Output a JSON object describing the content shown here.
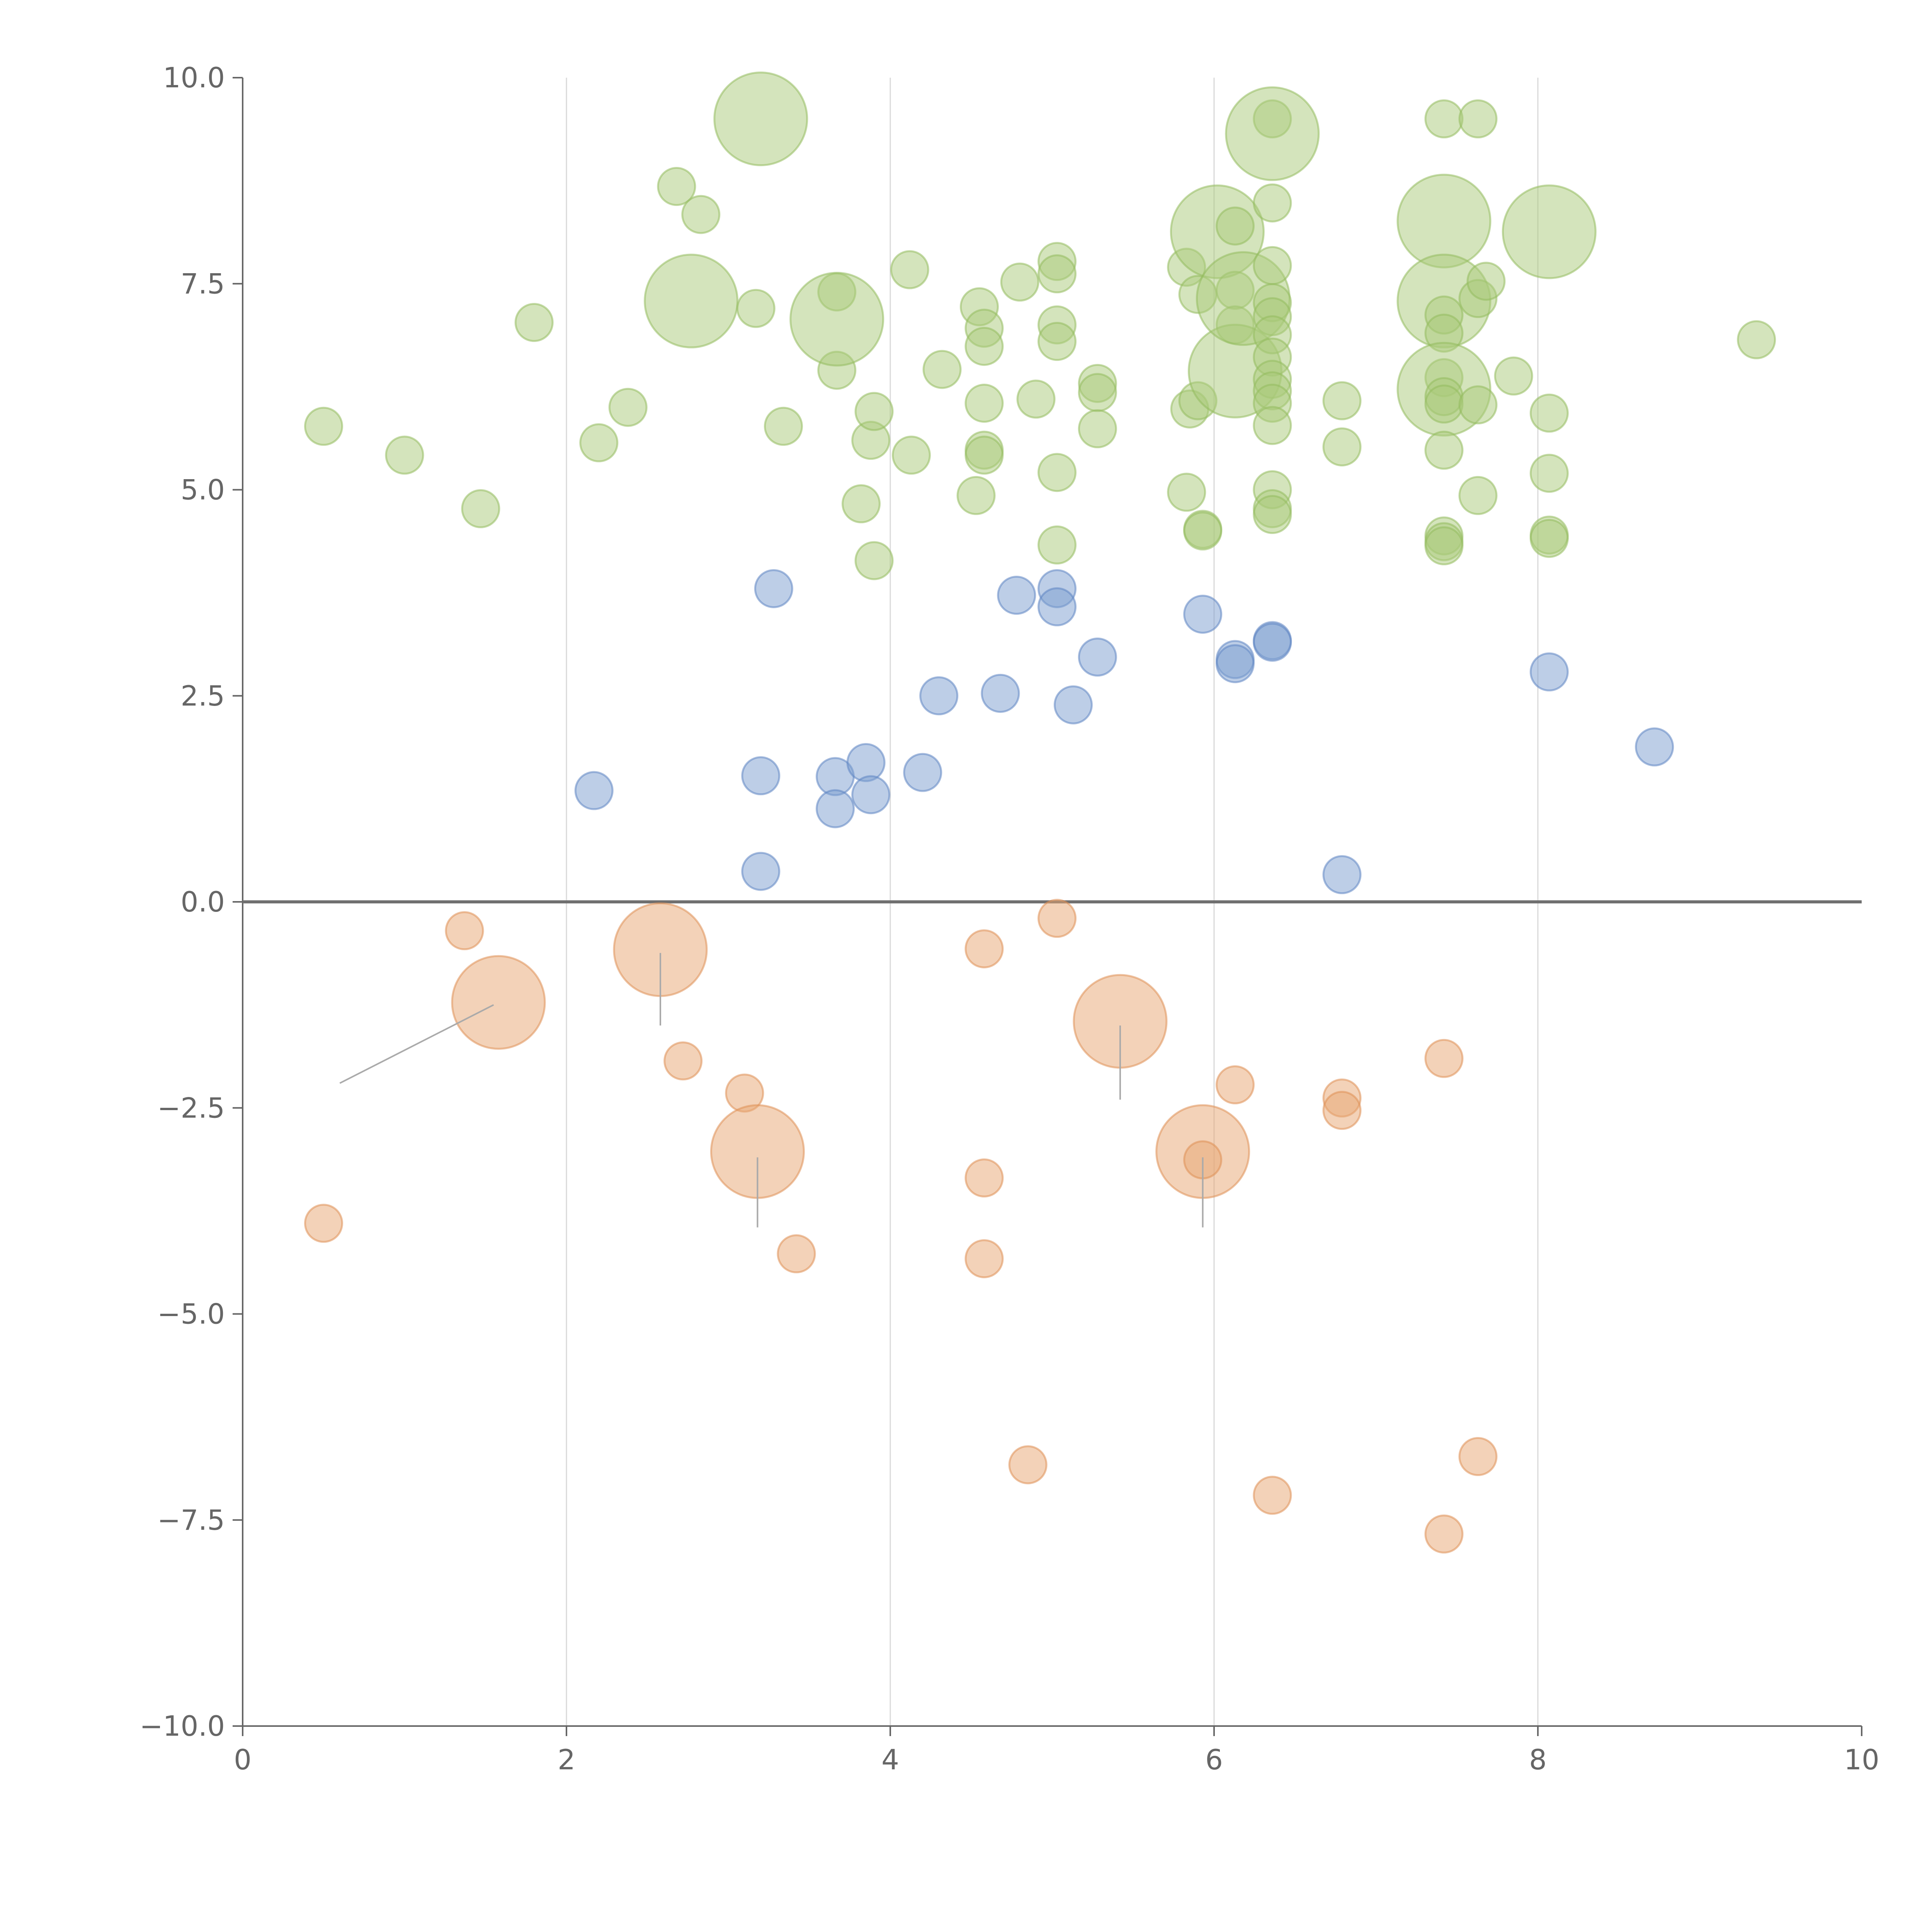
{
  "chart_data": {
    "type": "scatter",
    "title": "",
    "xlabel": "",
    "ylabel": "",
    "xlim": [
      0,
      10
    ],
    "ylim": [
      -10,
      10
    ],
    "x_ticks": [
      "0",
      "2",
      "4",
      "6",
      "8",
      "10"
    ],
    "x_tick_values": [
      0,
      2,
      4,
      6,
      8,
      10
    ],
    "y_ticks": [
      "10.0",
      "7.5",
      "5.0",
      "2.5",
      "0.0",
      "−2.5",
      "−5.0",
      "−7.5",
      "−10.0"
    ],
    "y_tick_values": [
      10,
      7.5,
      5,
      2.5,
      0,
      -2.5,
      -5,
      -7.5,
      -10
    ],
    "vertical_gridlines_at": [
      2,
      4,
      6,
      8
    ],
    "reference_line_y": 0,
    "series": [
      {
        "name": "green",
        "color": "#a9c97a",
        "stroke": "#93bb5f",
        "points": [
          [
            0.5,
            5.77,
            1
          ],
          [
            1.0,
            5.42,
            1
          ],
          [
            1.47,
            4.77,
            1
          ],
          [
            1.8,
            7.03,
            1
          ],
          [
            2.2,
            5.57,
            1
          ],
          [
            2.38,
            6.0,
            1
          ],
          [
            2.68,
            8.68,
            1
          ],
          [
            2.83,
            8.34,
            1
          ],
          [
            2.77,
            7.29,
            2.5
          ],
          [
            3.17,
            7.2,
            1
          ],
          [
            3.2,
            9.5,
            2.5
          ],
          [
            3.34,
            5.77,
            1
          ],
          [
            3.67,
            7.4,
            1
          ],
          [
            3.67,
            6.45,
            1
          ],
          [
            3.67,
            7.07,
            2.5
          ],
          [
            3.82,
            4.83,
            1
          ],
          [
            3.88,
            5.6,
            1
          ],
          [
            3.9,
            5.95,
            1
          ],
          [
            3.9,
            4.14,
            1
          ],
          [
            4.12,
            7.67,
            1
          ],
          [
            4.13,
            5.42,
            1
          ],
          [
            4.32,
            6.46,
            1
          ],
          [
            4.53,
            4.93,
            1
          ],
          [
            4.55,
            7.22,
            1
          ],
          [
            4.58,
            6.96,
            1
          ],
          [
            4.58,
            6.74,
            1
          ],
          [
            4.58,
            6.05,
            1
          ],
          [
            4.58,
            5.48,
            1
          ],
          [
            4.58,
            5.42,
            1
          ],
          [
            4.8,
            7.52,
            1
          ],
          [
            4.9,
            6.1,
            1
          ],
          [
            5.03,
            7.77,
            1
          ],
          [
            5.03,
            7.62,
            1
          ],
          [
            5.03,
            7.0,
            1
          ],
          [
            5.03,
            6.8,
            1
          ],
          [
            5.03,
            5.21,
            1
          ],
          [
            5.03,
            4.33,
            1
          ],
          [
            5.28,
            6.29,
            1
          ],
          [
            5.28,
            6.18,
            1
          ],
          [
            5.28,
            5.74,
            1
          ],
          [
            5.83,
            7.7,
            1
          ],
          [
            5.83,
            4.97,
            1
          ],
          [
            5.85,
            5.98,
            1
          ],
          [
            5.9,
            7.37,
            1
          ],
          [
            5.9,
            6.08,
            1
          ],
          [
            5.93,
            4.52,
            1
          ],
          [
            5.93,
            4.5,
            1
          ],
          [
            6.02,
            8.13,
            2.5
          ],
          [
            6.13,
            8.2,
            1
          ],
          [
            6.13,
            7.42,
            1
          ],
          [
            6.13,
            7.0,
            1
          ],
          [
            6.13,
            6.44,
            2.5
          ],
          [
            6.18,
            7.32,
            2.5
          ],
          [
            6.36,
            9.5,
            1
          ],
          [
            6.36,
            9.32,
            2.5
          ],
          [
            6.36,
            8.48,
            1
          ],
          [
            6.36,
            7.72,
            1
          ],
          [
            6.36,
            7.27,
            1
          ],
          [
            6.36,
            7.1,
            1
          ],
          [
            6.36,
            6.88,
            1
          ],
          [
            6.36,
            6.61,
            1
          ],
          [
            6.36,
            6.34,
            1
          ],
          [
            6.36,
            6.2,
            1
          ],
          [
            6.36,
            6.05,
            1
          ],
          [
            6.36,
            5.78,
            1
          ],
          [
            6.36,
            5.0,
            1
          ],
          [
            6.36,
            4.77,
            1
          ],
          [
            6.36,
            4.7,
            1
          ],
          [
            6.79,
            6.08,
            1
          ],
          [
            6.79,
            5.52,
            1
          ],
          [
            7.42,
            9.5,
            1
          ],
          [
            7.42,
            8.26,
            2.5
          ],
          [
            7.42,
            7.29,
            2.5
          ],
          [
            7.42,
            7.12,
            1
          ],
          [
            7.42,
            6.9,
            1
          ],
          [
            7.42,
            6.36,
            1
          ],
          [
            7.42,
            6.22,
            2.5
          ],
          [
            7.42,
            6.13,
            1
          ],
          [
            7.42,
            6.04,
            1
          ],
          [
            7.42,
            5.48,
            1
          ],
          [
            7.42,
            4.44,
            1
          ],
          [
            7.42,
            4.37,
            1
          ],
          [
            7.42,
            4.32,
            1
          ],
          [
            7.63,
            9.5,
            1
          ],
          [
            7.63,
            7.32,
            1
          ],
          [
            7.63,
            6.03,
            1
          ],
          [
            7.63,
            4.93,
            1
          ],
          [
            7.68,
            7.53,
            1
          ],
          [
            7.85,
            6.38,
            1
          ],
          [
            8.07,
            8.13,
            2.5
          ],
          [
            8.07,
            5.93,
            1
          ],
          [
            8.07,
            5.2,
            1
          ],
          [
            8.07,
            4.45,
            1
          ],
          [
            8.07,
            4.41,
            1
          ],
          [
            9.35,
            6.82,
            1
          ]
        ]
      },
      {
        "name": "blue",
        "color": "#7b9dd0",
        "stroke": "#5e85c2",
        "points": [
          [
            2.17,
            1.35,
            1
          ],
          [
            3.2,
            1.53,
            1
          ],
          [
            3.2,
            0.37,
            1
          ],
          [
            3.28,
            3.8,
            1
          ],
          [
            3.66,
            1.52,
            1
          ],
          [
            3.66,
            1.13,
            1
          ],
          [
            3.85,
            1.69,
            1
          ],
          [
            3.88,
            1.3,
            1
          ],
          [
            4.2,
            1.57,
            1
          ],
          [
            4.3,
            2.5,
            1
          ],
          [
            4.68,
            2.53,
            1
          ],
          [
            4.78,
            3.72,
            1
          ],
          [
            5.03,
            3.8,
            1
          ],
          [
            5.03,
            3.58,
            1
          ],
          [
            5.13,
            2.39,
            1
          ],
          [
            5.28,
            2.97,
            1
          ],
          [
            5.93,
            3.49,
            1
          ],
          [
            6.13,
            2.94,
            1
          ],
          [
            6.13,
            2.89,
            1
          ],
          [
            6.36,
            3.17,
            1
          ],
          [
            6.36,
            3.15,
            1
          ],
          [
            6.79,
            0.33,
            1
          ],
          [
            8.07,
            2.79,
            1
          ],
          [
            8.72,
            1.88,
            1
          ]
        ]
      },
      {
        "name": "orange",
        "color": "#e8a672",
        "stroke": "#df9055",
        "points": [
          [
            0.5,
            -3.9,
            1
          ],
          [
            1.37,
            -0.35,
            1
          ],
          [
            1.58,
            -1.22,
            2.5
          ],
          [
            2.58,
            -0.58,
            2.5
          ],
          [
            2.72,
            -1.93,
            1
          ],
          [
            3.1,
            -2.32,
            1
          ],
          [
            3.18,
            -3.03,
            2.5
          ],
          [
            3.42,
            -4.27,
            1
          ],
          [
            4.58,
            -0.57,
            1
          ],
          [
            4.58,
            -3.35,
            1
          ],
          [
            4.58,
            -4.33,
            1
          ],
          [
            4.85,
            -6.83,
            1
          ],
          [
            5.03,
            -0.2,
            1
          ],
          [
            5.42,
            -1.45,
            2.5
          ],
          [
            5.93,
            -3.03,
            2.5
          ],
          [
            5.93,
            -3.13,
            1
          ],
          [
            6.13,
            -2.22,
            1
          ],
          [
            6.36,
            -7.2,
            1
          ],
          [
            6.79,
            -2.38,
            1
          ],
          [
            6.79,
            -2.53,
            1
          ],
          [
            7.42,
            -1.9,
            1
          ],
          [
            7.42,
            -7.67,
            1
          ],
          [
            7.63,
            -6.73,
            1
          ]
        ]
      }
    ],
    "leader_lines": [
      [
        0.6,
        -2.2,
        1.55,
        -1.25
      ],
      [
        2.58,
        -0.62,
        2.58,
        -1.5
      ],
      [
        3.18,
        -3.1,
        3.18,
        -3.95
      ],
      [
        5.42,
        -1.5,
        5.42,
        -2.4
      ],
      [
        5.93,
        -3.1,
        5.93,
        -3.95
      ]
    ]
  }
}
